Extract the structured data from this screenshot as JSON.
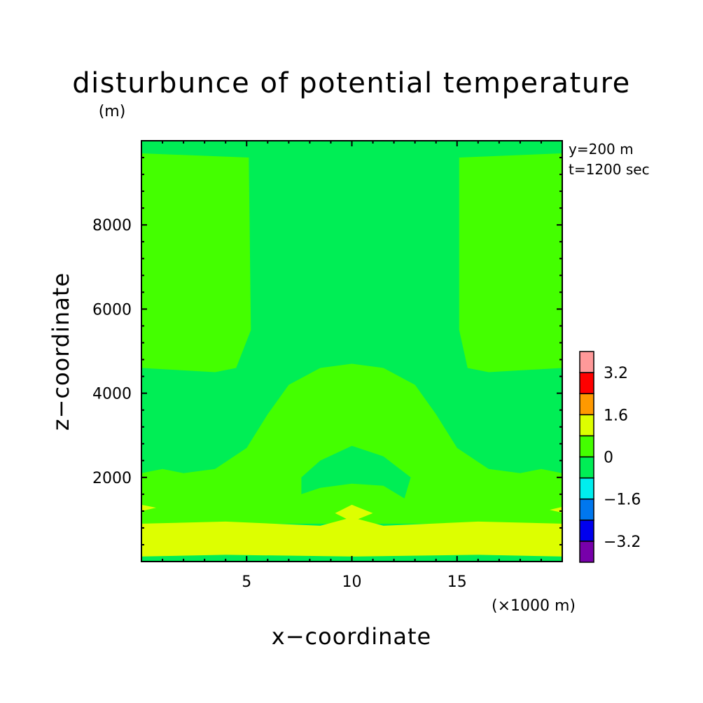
{
  "chart_data": {
    "type": "contour",
    "title": "disturbunce of potential temperature",
    "y_unit": "(m)",
    "xlabel": "x−coordinate",
    "ylabel": "z−coordinate",
    "x_unit": "(×1000 m)",
    "xlim": [
      0,
      20
    ],
    "ylim": [
      0,
      10000
    ],
    "xticks": [
      5,
      10,
      15
    ],
    "xtick_labels": [
      "5",
      "10",
      "15"
    ],
    "yticks": [
      2000,
      4000,
      6000,
      8000
    ],
    "ytick_labels": [
      "2000",
      "4000",
      "6000",
      "8000"
    ],
    "annotations": [
      "y=200 m",
      "t=1200 sec"
    ],
    "colorbar": {
      "levels": [
        -4.0,
        -3.2,
        -2.4,
        -1.6,
        -0.8,
        0,
        0.8,
        1.6,
        2.4,
        3.2,
        4.0
      ],
      "labels": [
        "3.2",
        "1.6",
        "0",
        "−1.6",
        "−3.2"
      ],
      "label_values": [
        3.2,
        1.6,
        0,
        -1.6,
        -3.2
      ],
      "colors_bottom_to_top": [
        "#7700aa",
        "#0000ee",
        "#0077ee",
        "#00eeee",
        "#00ee55",
        "#44ff00",
        "#ddff00",
        "#ff9900",
        "#ff0000",
        "#ff9999"
      ]
    },
    "background_level_color": "#00ee55",
    "regions": [
      {
        "name": "upper-left-positive",
        "color": "#44ff00",
        "range": [
          0,
          0.8
        ],
        "points": [
          [
            0,
            9700
          ],
          [
            5.1,
            9600
          ],
          [
            5.2,
            5500
          ],
          [
            4.5,
            4600
          ],
          [
            3.5,
            4500
          ],
          [
            0,
            4600
          ]
        ]
      },
      {
        "name": "upper-right-positive",
        "color": "#44ff00",
        "range": [
          0,
          0.8
        ],
        "points": [
          [
            15.1,
            9600
          ],
          [
            20,
            9700
          ],
          [
            20,
            4600
          ],
          [
            16.5,
            4500
          ],
          [
            15.5,
            4600
          ],
          [
            15.1,
            5500
          ]
        ]
      },
      {
        "name": "central-dome-positive",
        "color": "#44ff00",
        "range": [
          0,
          0.8
        ],
        "points": [
          [
            0,
            2100
          ],
          [
            1,
            2200
          ],
          [
            2,
            2100
          ],
          [
            3.5,
            2200
          ],
          [
            5,
            2700
          ],
          [
            6,
            3500
          ],
          [
            7,
            4200
          ],
          [
            8.5,
            4600
          ],
          [
            10,
            4700
          ],
          [
            11.5,
            4600
          ],
          [
            13,
            4200
          ],
          [
            14,
            3500
          ],
          [
            15,
            2700
          ],
          [
            16.5,
            2200
          ],
          [
            18,
            2100
          ],
          [
            19,
            2200
          ],
          [
            20,
            2100
          ],
          [
            20,
            900
          ],
          [
            0,
            900
          ]
        ]
      },
      {
        "name": "central-negative-pocket",
        "color": "#00ee55",
        "range": [
          -0.8,
          0
        ],
        "points": [
          [
            7.6,
            1600
          ],
          [
            7.6,
            2000
          ],
          [
            8.5,
            2400
          ],
          [
            10,
            2750
          ],
          [
            11.5,
            2500
          ],
          [
            12.8,
            2000
          ],
          [
            12.5,
            1500
          ],
          [
            11.5,
            1800
          ],
          [
            10,
            1850
          ],
          [
            8.5,
            1750
          ]
        ]
      },
      {
        "name": "lower-band-warm",
        "color": "#ddff00",
        "range": [
          0.8,
          1.6
        ],
        "points": [
          [
            0,
            900
          ],
          [
            4,
            950
          ],
          [
            8.5,
            850
          ],
          [
            10,
            1050
          ],
          [
            11.5,
            850
          ],
          [
            16,
            950
          ],
          [
            20,
            900
          ],
          [
            20,
            120
          ],
          [
            16,
            160
          ],
          [
            10,
            120
          ],
          [
            4,
            160
          ],
          [
            0,
            120
          ]
        ]
      },
      {
        "name": "left-edge-warm-sliver",
        "color": "#ddff00",
        "range": [
          0.8,
          1.6
        ],
        "points": [
          [
            0,
            1350
          ],
          [
            0.7,
            1280
          ],
          [
            0,
            1200
          ]
        ]
      },
      {
        "name": "right-edge-warm-sliver",
        "color": "#ddff00",
        "range": [
          0.8,
          1.6
        ],
        "points": [
          [
            20,
            1300
          ],
          [
            19.4,
            1230
          ],
          [
            20,
            1160
          ]
        ]
      },
      {
        "name": "central-warm-diamond",
        "color": "#ddff00",
        "range": [
          0.8,
          1.6
        ],
        "points": [
          [
            9.2,
            1150
          ],
          [
            10,
            1350
          ],
          [
            11,
            1150
          ],
          [
            10,
            950
          ]
        ]
      }
    ]
  }
}
